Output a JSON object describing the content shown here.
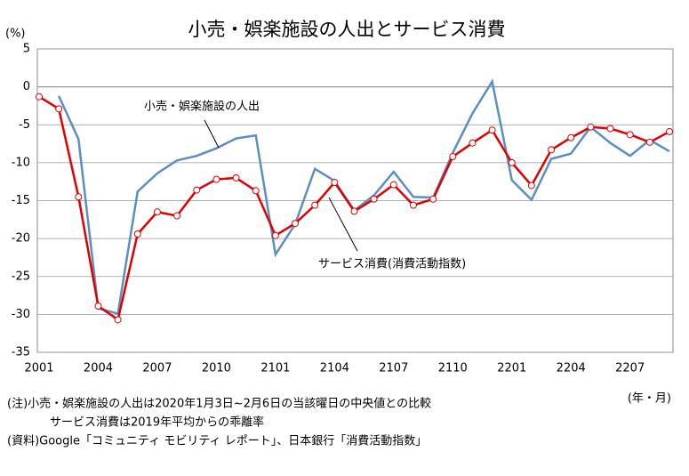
{
  "chart_data": {
    "type": "line",
    "title": "小売・娯楽施設の人出とサービス消費",
    "y_unit": "(%)",
    "x_unit": "(年・月)",
    "categories": [
      "2001",
      null,
      null,
      "2004",
      null,
      null,
      "2007",
      null,
      null,
      "2010",
      null,
      null,
      "2101",
      null,
      null,
      "2104",
      null,
      null,
      "2107",
      null,
      null,
      "2110",
      null,
      null,
      "2201",
      null,
      null,
      "2204",
      null,
      null,
      "2207",
      null,
      null
    ],
    "series": [
      {
        "name": "小売・娯楽施設の人出",
        "color": "#5b8fc2",
        "markers": false,
        "values": [
          null,
          -1.2,
          -6.9,
          -29.2,
          -29.9,
          -13.8,
          -11.4,
          -9.7,
          -9.1,
          -8.1,
          -6.8,
          -6.4,
          -22.1,
          -18.1,
          -10.8,
          -12.4,
          -16.3,
          -14.3,
          -11.2,
          -14.5,
          -14.6,
          -8.7,
          -3.5,
          0.7,
          -12.3,
          -14.9,
          -9.5,
          -8.8,
          -5.3,
          -7.4,
          -9.1,
          -7.0,
          -8.5
        ]
      },
      {
        "name": "サービス消費(消費活動指数)",
        "color": "#e00000",
        "markers": true,
        "values": [
          -1.3,
          -2.9,
          -14.5,
          -28.9,
          -30.7,
          -19.4,
          -16.5,
          -17.0,
          -13.6,
          -12.2,
          -12.0,
          -13.7,
          -19.6,
          -18.0,
          -15.6,
          -12.6,
          -16.4,
          -14.8,
          -12.9,
          -15.6,
          -14.8,
          -9.2,
          -7.4,
          -5.7,
          -10.0,
          -13.0,
          -8.3,
          -6.7,
          -5.3,
          -5.5,
          -6.3,
          -7.3,
          -5.9
        ]
      }
    ],
    "ylim": [
      -35,
      5
    ],
    "yticks": [
      -35,
      -30,
      -25,
      -20,
      -15,
      -10,
      -5,
      0,
      5
    ],
    "grid": true,
    "notes": [
      "(注)小売・娯楽施設の人出は2020年1月3日~2月6日の当該曜日の中央値との比較",
      "サービス消費は2019年平均からの乖離率",
      "(資料)Google「コミュニティ モビリティ レポート」、日本銀行「消費活動指数」"
    ]
  }
}
